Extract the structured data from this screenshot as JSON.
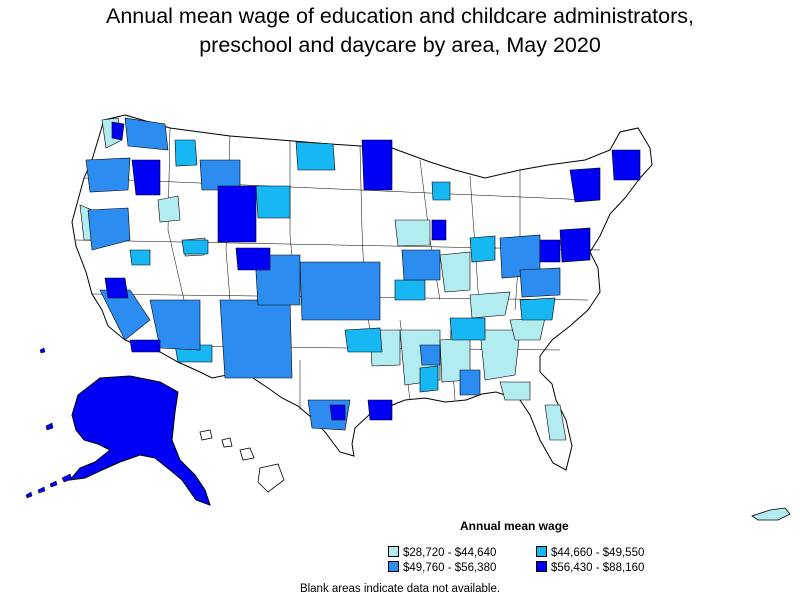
{
  "title_line1": "Annual mean wage of education and childcare administrators,",
  "title_line2": "preschool and daycare by area, May 2020",
  "legend": {
    "title": "Annual mean wage",
    "items": [
      {
        "label": "$28,720 - $44,640",
        "color": "#b2ebf0"
      },
      {
        "label": "$44,660 - $49,550",
        "color": "#16b7f2"
      },
      {
        "label": "$49,760 - $56,380",
        "color": "#2d8cf0"
      },
      {
        "label": "$56,430 - $88,160",
        "color": "#0000f5"
      }
    ]
  },
  "footnote": "Blank areas indicate data not available."
}
